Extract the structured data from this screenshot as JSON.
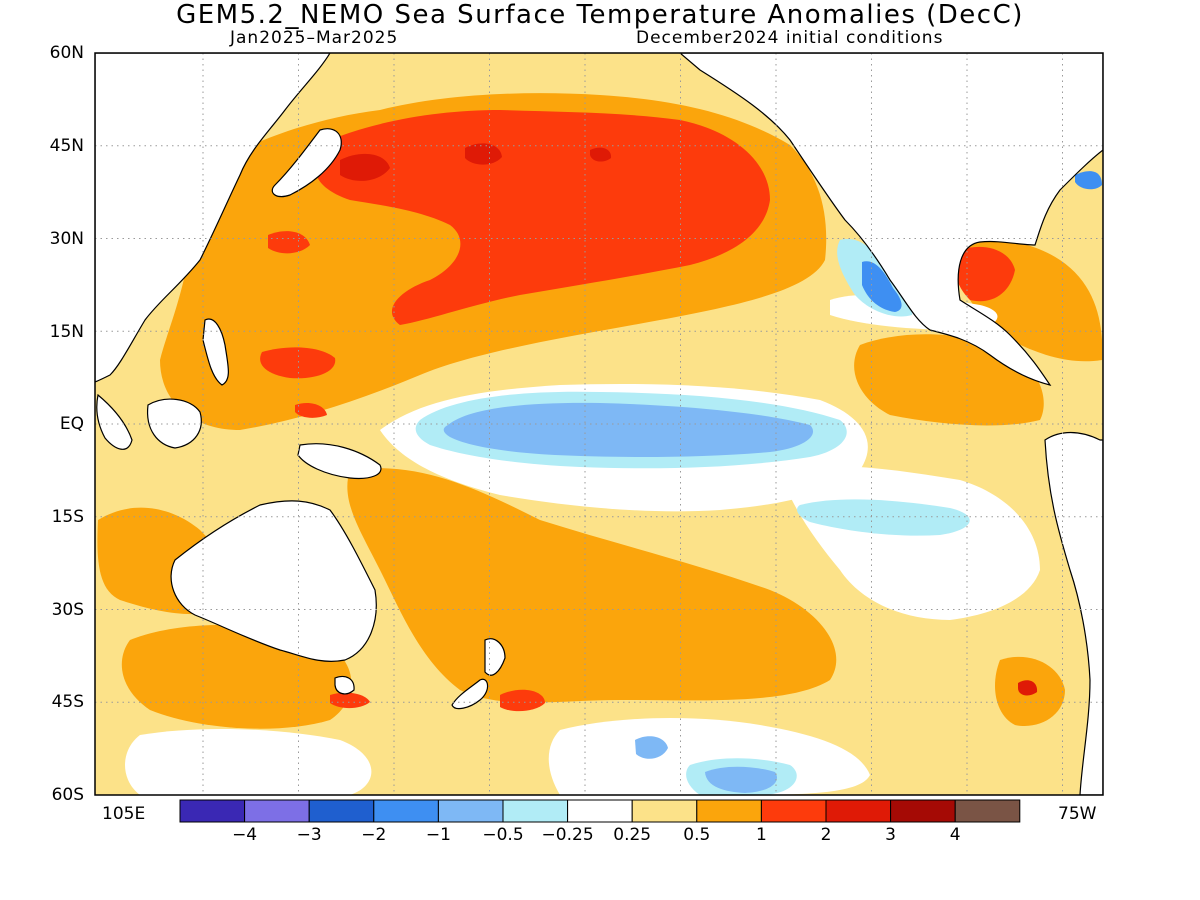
{
  "header": {
    "title": "GEM5.2_NEMO Sea Surface Temperature Anomalies (DecC)",
    "period": "Jan2025–Mar2025",
    "init": "December2024 initial conditions"
  },
  "axes": {
    "lat_labels": [
      "60N",
      "45N",
      "30N",
      "15N",
      "EQ",
      "15S",
      "30S",
      "45S",
      "60S"
    ],
    "lon_left": "105E",
    "lon_right": "75W"
  },
  "colorbar": {
    "colors": [
      "#3a28b4",
      "#7d6fe6",
      "#1f5fcf",
      "#3e8ff2",
      "#7eb8f5",
      "#b1ecf6",
      "#ffffff",
      "#fce289",
      "#fba50c",
      "#fd3b0c",
      "#df1a06",
      "#a50a05",
      "#7a5445"
    ],
    "labels": [
      "−4",
      "−3",
      "−2",
      "−1",
      "−0.5",
      "−0.25",
      "0.25",
      "0.5",
      "1",
      "2",
      "3",
      "4"
    ]
  },
  "map_fill": {
    "pale": "#fce289",
    "orange": "#fba50c",
    "red_orange": "#fd3b0c",
    "red": "#df1a06",
    "light_cyan": "#b1ecf6",
    "light_blue": "#7eb8f5",
    "blue": "#3e8ff2",
    "land": "#ffffff",
    "coast": "#000000",
    "grid": "#9a9a9a"
  }
}
